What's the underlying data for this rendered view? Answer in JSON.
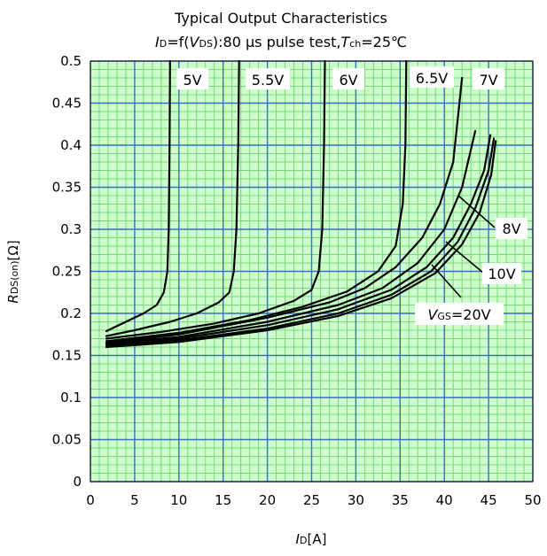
{
  "chart_data": {
    "type": "line",
    "title": "Typical Output Characteristics",
    "subtitle": {
      "i": "I",
      "d": "D",
      "f": "=f(",
      "v": "V",
      "ds": "DS",
      "rest": "):80 µs pulse test,",
      "t": "T",
      "ch": "ch",
      "temp": "=25℃"
    },
    "xlabel": {
      "i": "I",
      "sub": "D",
      "unit": "[A]"
    },
    "ylabel": {
      "r": "R",
      "sub": "DS(on)",
      "unit": "[Ω]"
    },
    "xlim": [
      0,
      50
    ],
    "ylim": [
      0,
      0.5
    ],
    "x_ticks": [
      "0",
      "5",
      "10",
      "15",
      "20",
      "25",
      "30",
      "35",
      "40",
      "45",
      "50"
    ],
    "y_ticks": [
      "0",
      "0.05",
      "0.1",
      "0.15",
      "0.2",
      "0.25",
      "0.3",
      "0.35",
      "0.4",
      "0.45",
      "0.5"
    ],
    "grid": {
      "major": true,
      "minor": true,
      "major_color": "#3a6fc4",
      "minor_color": "#7ad67a",
      "background": "#ccffcc"
    },
    "series": [
      {
        "name": "5V",
        "points": [
          [
            1.8,
            0.179
          ],
          [
            4,
            0.19
          ],
          [
            6,
            0.2
          ],
          [
            7.5,
            0.21
          ],
          [
            8.3,
            0.225
          ],
          [
            8.7,
            0.25
          ],
          [
            8.85,
            0.3
          ],
          [
            8.95,
            0.4
          ],
          [
            9,
            0.5
          ]
        ]
      },
      {
        "name": "5.5V",
        "points": [
          [
            1.8,
            0.173
          ],
          [
            5,
            0.18
          ],
          [
            9,
            0.19
          ],
          [
            12,
            0.2
          ],
          [
            14.5,
            0.213
          ],
          [
            15.7,
            0.225
          ],
          [
            16.2,
            0.25
          ],
          [
            16.5,
            0.3
          ],
          [
            16.7,
            0.4
          ],
          [
            16.8,
            0.5
          ]
        ]
      },
      {
        "name": "6V",
        "points": [
          [
            1.8,
            0.17
          ],
          [
            8,
            0.178
          ],
          [
            14,
            0.188
          ],
          [
            19,
            0.2
          ],
          [
            23,
            0.215
          ],
          [
            25,
            0.228
          ],
          [
            25.8,
            0.25
          ],
          [
            26.2,
            0.3
          ],
          [
            26.4,
            0.4
          ],
          [
            26.5,
            0.5
          ]
        ]
      },
      {
        "name": "6.5V",
        "points": [
          [
            1.8,
            0.167
          ],
          [
            10,
            0.177
          ],
          [
            18,
            0.192
          ],
          [
            24,
            0.208
          ],
          [
            29,
            0.226
          ],
          [
            32.5,
            0.25
          ],
          [
            34.5,
            0.28
          ],
          [
            35.3,
            0.33
          ],
          [
            35.6,
            0.4
          ],
          [
            35.7,
            0.5
          ]
        ]
      },
      {
        "name": "7V",
        "points": [
          [
            1.8,
            0.165
          ],
          [
            10,
            0.175
          ],
          [
            20,
            0.195
          ],
          [
            27,
            0.213
          ],
          [
            31,
            0.23
          ],
          [
            34.5,
            0.255
          ],
          [
            37.5,
            0.29
          ],
          [
            39.5,
            0.33
          ],
          [
            41,
            0.38
          ],
          [
            42,
            0.48
          ]
        ]
      },
      {
        "name": "8V",
        "points": [
          [
            1.8,
            0.164
          ],
          [
            10,
            0.172
          ],
          [
            20,
            0.19
          ],
          [
            28,
            0.21
          ],
          [
            33,
            0.23
          ],
          [
            37,
            0.26
          ],
          [
            40,
            0.3
          ],
          [
            42,
            0.35
          ],
          [
            43.5,
            0.417
          ]
        ]
      },
      {
        "name": "10V",
        "points": [
          [
            1.8,
            0.162
          ],
          [
            10,
            0.17
          ],
          [
            20,
            0.186
          ],
          [
            28,
            0.205
          ],
          [
            34,
            0.228
          ],
          [
            38,
            0.255
          ],
          [
            41,
            0.29
          ],
          [
            43,
            0.33
          ],
          [
            44.5,
            0.37
          ],
          [
            45.2,
            0.412
          ]
        ]
      },
      {
        "name": "",
        "points": [
          [
            1.8,
            0.161
          ],
          [
            10,
            0.168
          ],
          [
            20,
            0.182
          ],
          [
            28,
            0.2
          ],
          [
            34,
            0.222
          ],
          [
            38.5,
            0.25
          ],
          [
            41.5,
            0.285
          ],
          [
            43.5,
            0.325
          ],
          [
            45,
            0.37
          ],
          [
            45.6,
            0.408
          ]
        ]
      },
      {
        "name": "",
        "points": [
          [
            1.8,
            0.16
          ],
          [
            10,
            0.166
          ],
          [
            20,
            0.18
          ],
          [
            28,
            0.197
          ],
          [
            34,
            0.218
          ],
          [
            39,
            0.248
          ],
          [
            42,
            0.282
          ],
          [
            44,
            0.32
          ],
          [
            45.3,
            0.365
          ],
          [
            45.8,
            0.405
          ]
        ]
      }
    ],
    "annotations": {
      "v5": "5V",
      "v55": "5.5V",
      "v6": "6V",
      "v65": "6.5V",
      "v7": "7V",
      "v8": "8V",
      "v10": "10V",
      "vgs_v": "V",
      "vgs_sub": "GS",
      "vgs_val": "=20V"
    },
    "line_color": "#000000"
  }
}
